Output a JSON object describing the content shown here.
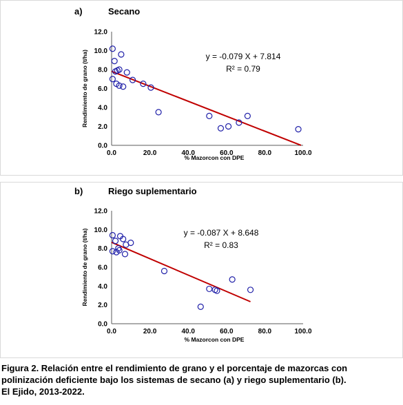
{
  "chart_data": [
    {
      "type": "scatter",
      "panel_label": "a)",
      "title": "Secano",
      "xlabel": "% Mazorcon con DPE",
      "ylabel": "Rendimiento de grano (t/ha)",
      "xlim": [
        0,
        100
      ],
      "ylim": [
        0,
        12
      ],
      "xticks": [
        "0.0",
        "20.0",
        "40.0",
        "60.0",
        "80.0",
        "100.0"
      ],
      "yticks": [
        "0.0",
        "2.0",
        "4.0",
        "6.0",
        "8.0",
        "10.0",
        "12.0"
      ],
      "marker_color": "#1f1fa8",
      "trend_color": "#c00000",
      "equation": "y = -0.079 X + 7.814",
      "r2": "R² = 0.79",
      "trendline": {
        "slope": -0.079,
        "intercept": 7.814,
        "x_range": [
          0,
          98.9
        ]
      },
      "points": [
        {
          "x": 0.5,
          "y": 10.2
        },
        {
          "x": 1.5,
          "y": 8.9
        },
        {
          "x": 5.0,
          "y": 9.6
        },
        {
          "x": 0.5,
          "y": 7.0
        },
        {
          "x": 2.0,
          "y": 7.8
        },
        {
          "x": 3.0,
          "y": 7.9
        },
        {
          "x": 4.0,
          "y": 8.0
        },
        {
          "x": 8.0,
          "y": 7.7
        },
        {
          "x": 2.5,
          "y": 6.5
        },
        {
          "x": 4.0,
          "y": 6.3
        },
        {
          "x": 6.0,
          "y": 6.2
        },
        {
          "x": 11.0,
          "y": 6.9
        },
        {
          "x": 16.5,
          "y": 6.5
        },
        {
          "x": 20.5,
          "y": 6.1
        },
        {
          "x": 24.5,
          "y": 3.5
        },
        {
          "x": 51.0,
          "y": 3.1
        },
        {
          "x": 57.0,
          "y": 1.8
        },
        {
          "x": 61.0,
          "y": 2.0
        },
        {
          "x": 66.5,
          "y": 2.4
        },
        {
          "x": 71.0,
          "y": 3.1
        },
        {
          "x": 97.5,
          "y": 1.7
        }
      ]
    },
    {
      "type": "scatter",
      "panel_label": "b)",
      "title": "Riego suplementario",
      "xlabel": "% Mazorcon con DPE",
      "ylabel": "Rendimiento de grano (t/ha)",
      "xlim": [
        0,
        100
      ],
      "ylim": [
        0,
        12
      ],
      "xticks": [
        "0.0",
        "20.0",
        "40.0",
        "60.0",
        "80.0",
        "100.0"
      ],
      "yticks": [
        "0.0",
        "2.0",
        "4.0",
        "6.0",
        "8.0",
        "10.0",
        "12.0"
      ],
      "marker_color": "#1f1fa8",
      "trend_color": "#c00000",
      "equation": "y = -0.087 X + 8.648",
      "r2": "R² = 0.83",
      "trendline": {
        "slope": -0.087,
        "intercept": 8.648,
        "x_range": [
          0,
          72.5
        ]
      },
      "points": [
        {
          "x": 0.5,
          "y": 9.4
        },
        {
          "x": 2.0,
          "y": 8.8
        },
        {
          "x": 4.5,
          "y": 9.3
        },
        {
          "x": 6.0,
          "y": 9.0
        },
        {
          "x": 10.0,
          "y": 8.6
        },
        {
          "x": 7.5,
          "y": 8.4
        },
        {
          "x": 0.5,
          "y": 7.7
        },
        {
          "x": 2.5,
          "y": 7.6
        },
        {
          "x": 3.5,
          "y": 8.0
        },
        {
          "x": 4.0,
          "y": 7.8
        },
        {
          "x": 7.0,
          "y": 7.4
        },
        {
          "x": 27.5,
          "y": 5.6
        },
        {
          "x": 51.0,
          "y": 3.7
        },
        {
          "x": 54.0,
          "y": 3.6
        },
        {
          "x": 55.0,
          "y": 3.5
        },
        {
          "x": 63.0,
          "y": 4.7
        },
        {
          "x": 72.5,
          "y": 3.6
        },
        {
          "x": 46.5,
          "y": 1.8
        }
      ]
    }
  ],
  "caption": {
    "lines": [
      "Figura 2. Relación entre el rendimiento de grano y el porcentaje de mazorcas con",
      "polinización deficiente bajo los sistemas de secano (a) y riego suplementario (b).",
      "El Ejido, 2013-2022."
    ]
  }
}
